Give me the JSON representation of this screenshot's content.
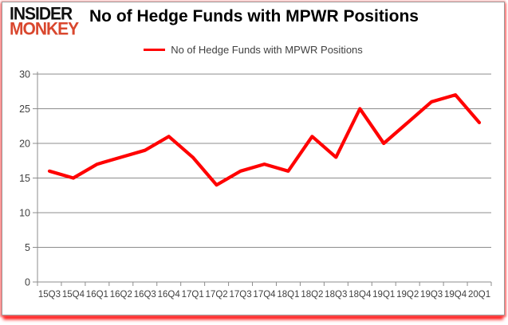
{
  "logo": {
    "line1": "INSIDER",
    "line2": "MONKEY"
  },
  "header": {
    "title": "No of Hedge Funds with MPWR Positions"
  },
  "legend": {
    "label": "No of Hedge Funds with MPWR Positions",
    "swatch_color": "#ff0000"
  },
  "colors": {
    "series_red": "#ff0000",
    "logo_red": "#d9472e",
    "gridline_gray": "#8c8c8c",
    "axis_label_gray": "#3f3f3f",
    "border_gray": "#9a9a9a"
  },
  "chart_data": {
    "type": "line",
    "title": "No of Hedge Funds with MPWR Positions",
    "categories": [
      "15Q3",
      "15Q4",
      "16Q1",
      "16Q2",
      "16Q3",
      "16Q4",
      "17Q1",
      "17Q2",
      "17Q3",
      "17Q4",
      "18Q1",
      "18Q2",
      "18Q3",
      "18Q4",
      "19Q1",
      "19Q2",
      "19Q3",
      "19Q4",
      "20Q1"
    ],
    "series": [
      {
        "name": "No of Hedge Funds with MPWR Positions",
        "color": "#ff0000",
        "values": [
          16,
          15,
          17,
          18,
          19,
          21,
          18,
          14,
          16,
          17,
          16,
          21,
          18,
          25,
          20,
          23,
          26,
          27,
          23
        ]
      }
    ],
    "xlabel": "",
    "ylabel": "",
    "ylim": [
      0,
      30
    ],
    "yticks": [
      0,
      5,
      10,
      15,
      20,
      25,
      30
    ],
    "grid": true,
    "legend_position": "top"
  }
}
